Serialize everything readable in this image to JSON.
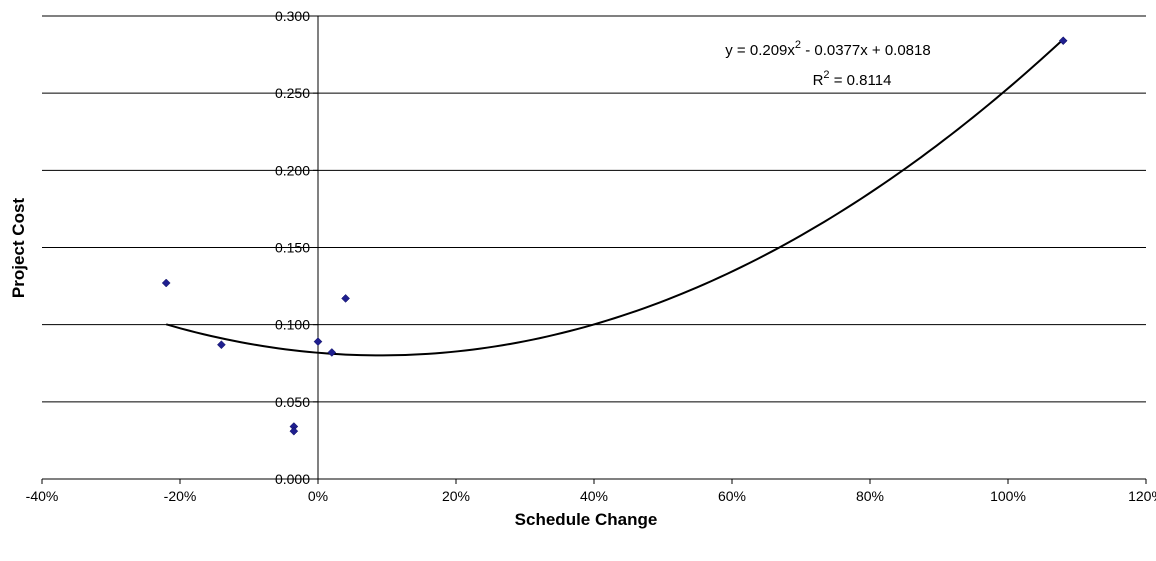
{
  "chart_data": {
    "type": "scatter",
    "title": "",
    "xlabel": "Schedule Change",
    "ylabel": "Project Cost",
    "xlim": [
      -0.4,
      1.2
    ],
    "ylim": [
      0,
      0.3
    ],
    "grid": true,
    "x_ticks": [
      -0.4,
      -0.2,
      0,
      0.2,
      0.4,
      0.6,
      0.8,
      1.0,
      1.2
    ],
    "x_tick_labels": [
      "-40%",
      "-20%",
      "0%",
      "20%",
      "40%",
      "60%",
      "80%",
      "100%",
      "120%"
    ],
    "y_ticks": [
      0,
      0.05,
      0.1,
      0.15,
      0.2,
      0.25,
      0.3
    ],
    "y_tick_labels": [
      "0.000",
      "0.050",
      "0.100",
      "0.150",
      "0.200",
      "0.250",
      "0.300"
    ],
    "marker_color": "#1f1f8f",
    "series": [
      {
        "x": [
          -0.22,
          -0.14,
          -0.035,
          -0.035,
          0.0,
          0.02,
          0.04,
          1.08
        ],
        "y": [
          0.127,
          0.087,
          0.034,
          0.031,
          0.089,
          0.082,
          0.117,
          0.284
        ]
      }
    ],
    "trendline": {
      "type": "polynomial",
      "coefficients": [
        0.209,
        -0.0377,
        0.0818
      ],
      "x_range": [
        -0.22,
        1.08
      ],
      "color": "#000000",
      "equation_text": "y = 0.209x",
      "equation_sup": "2",
      "equation_rest": " - 0.0377x + 0.0818",
      "r2_prefix": "R",
      "r2_sup": "2",
      "r2_rest": " = 0.8114"
    }
  }
}
